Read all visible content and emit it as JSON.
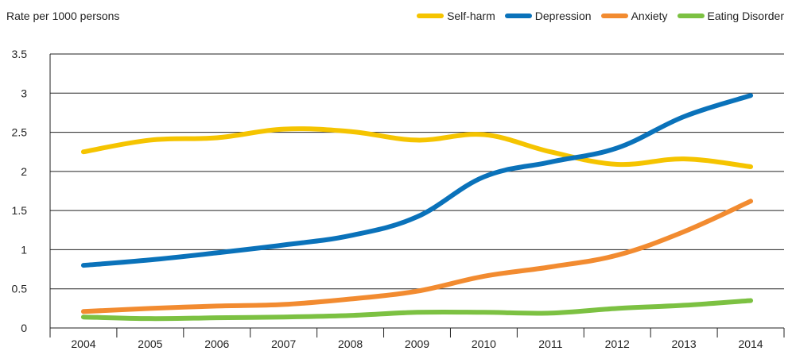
{
  "chart_data": {
    "type": "line",
    "ylabel": "Rate per 1000 persons",
    "xlabel": "",
    "categories": [
      "2004",
      "2005",
      "2006",
      "2007",
      "2008",
      "2009",
      "2010",
      "2011",
      "2012",
      "2013",
      "2014"
    ],
    "ylim": [
      0,
      3.5
    ],
    "yticks": [
      "0",
      "0.5",
      "1",
      "1.5",
      "2",
      "2.5",
      "3",
      "3.5"
    ],
    "grid": "horizontal",
    "legend_position": "top-right",
    "series": [
      {
        "name": "Self-harm",
        "color": "#F5C400",
        "values": [
          2.25,
          2.4,
          2.43,
          2.54,
          2.51,
          2.4,
          2.47,
          2.25,
          2.09,
          2.16,
          2.06
        ]
      },
      {
        "name": "Depression",
        "color": "#0A72BA",
        "values": [
          0.8,
          0.87,
          0.96,
          1.06,
          1.18,
          1.42,
          1.93,
          2.12,
          2.3,
          2.7,
          2.97
        ]
      },
      {
        "name": "Anxiety",
        "color": "#F28B30",
        "values": [
          0.21,
          0.25,
          0.28,
          0.3,
          0.37,
          0.47,
          0.66,
          0.78,
          0.93,
          1.23,
          1.62
        ]
      },
      {
        "name": "Eating Disorder",
        "color": "#7CC142",
        "values": [
          0.14,
          0.12,
          0.13,
          0.14,
          0.16,
          0.2,
          0.2,
          0.19,
          0.25,
          0.29,
          0.35
        ]
      }
    ]
  }
}
